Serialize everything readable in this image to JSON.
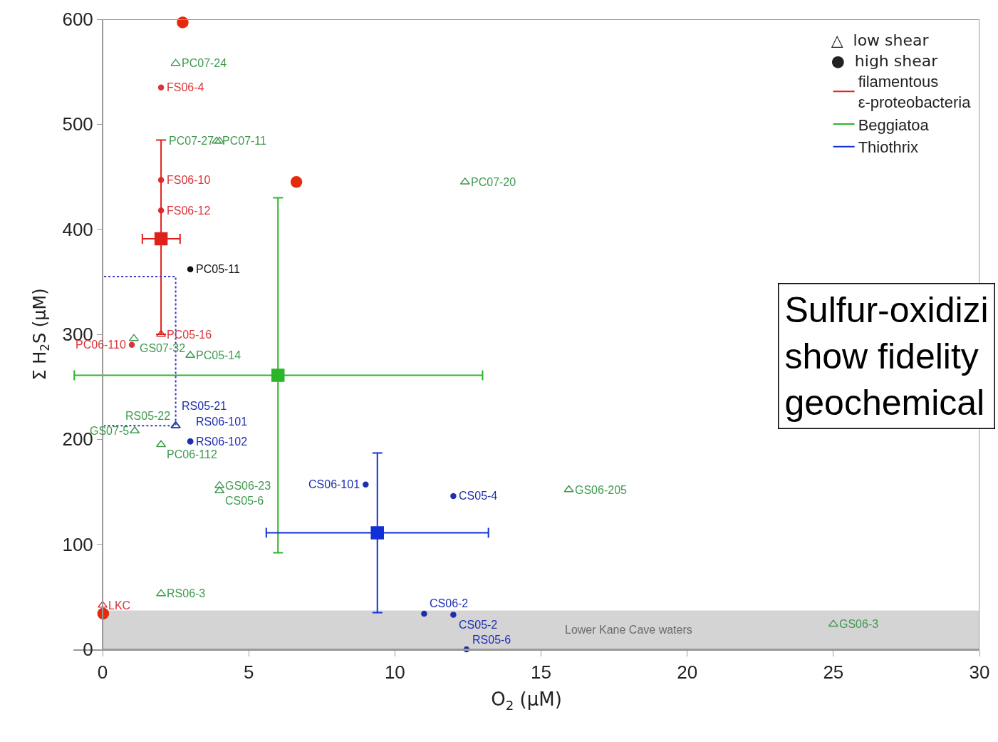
{
  "chart_data": {
    "type": "scatter",
    "xlabel": "O$_{2}$ (µM)",
    "ylabel": "Σ H$_{2}$S (µM)",
    "xlim": [
      -1,
      30
    ],
    "xticks": [
      0,
      5,
      10,
      15,
      20,
      25,
      30
    ],
    "ylim": [
      0,
      600
    ],
    "yticks": [
      0,
      100,
      200,
      300,
      400,
      500,
      600
    ],
    "grid": false,
    "legend": "top right",
    "legend_title": "△  low shear\n●  high shear",
    "bands": [
      {
        "axis": "y",
        "from": 0,
        "to": 37,
        "label": "Lower Kane Cave waters",
        "color": "#d4d4d4"
      }
    ],
    "series": [
      {
        "color": "#e52b0c",
        "marker": "circle",
        "x": [
          2.74,
          6.63,
          0.02
        ],
        "values": [
          597,
          445,
          34
        ]
      },
      {
        "marker": "circle",
        "x": [
          2.0,
          2.0,
          2.0,
          3.0,
          1.0,
          3.0,
          3.0,
          9.0,
          12.0,
          11.0,
          12.0,
          12.45
        ],
        "values": [
          535,
          447,
          418,
          362,
          290,
          198,
          198,
          157,
          146,
          34,
          33,
          0
        ],
        "value_labels": [
          "FS06-4",
          "FS06-10",
          "FS06-12",
          "PC05-11",
          "PC06-110",
          "RS06-102",
          "RS06-101",
          "CS06-101",
          "CS05-4",
          "CS06-2",
          "CS05-2",
          "RS05-6"
        ],
        "colors": [
          "#d9363a",
          "#d9363a",
          "#d9363a",
          "#111111",
          "#d9363a",
          "#1c2fb0",
          "#1c2fb0",
          "#1c2fb0",
          "#1c2fb0",
          "#1c2fb0",
          "#1c2fb0",
          "#1c2fb0"
        ]
      },
      {
        "marker": "triangle",
        "x": [
          2.5,
          3.9,
          4.0,
          12.4,
          1.07,
          2.0,
          3.0,
          1.1,
          2.0,
          2.5,
          2.5,
          4.0,
          4.0,
          15.95,
          2.0,
          25.0,
          0.0
        ],
        "values": [
          558,
          484,
          484,
          445,
          296,
          300,
          280,
          208,
          195,
          213,
          213,
          156,
          151,
          152,
          53,
          24,
          42
        ],
        "value_labels": [
          "PC07-24",
          "PC07-11",
          "PC07-27",
          "PC07-20",
          "GS07-32",
          "PC05-16",
          "PC05-14",
          "GS07-5",
          "PC06-112",
          "RS05-22",
          "RS05-21",
          "GS06-23",
          "CS05-6",
          "GS06-205",
          "RS06-3",
          "GS06-3",
          "LKC"
        ],
        "colors": [
          "#3f9a4f",
          "#3f9a4f",
          "#3f9a4f",
          "#3f9a4f",
          "#3f9a4f",
          "#d9363a",
          "#3f9a4f",
          "#3f9a4f",
          "#3f9a4f",
          "#3f9a4f",
          "#1c2fb0",
          "#3f9a4f",
          "#3f9a4f",
          "#3f9a4f",
          "#3f9a4f",
          "#3f9a4f",
          "#d9363a"
        ]
      },
      {
        "name": "filamentous\nε-proteobacteria",
        "color": "#e0211b",
        "marker": "square",
        "x": [
          2.0
        ],
        "values": [
          391
        ],
        "errors": [
          [
            300,
            485
          ]
        ],
        "xerrors": [
          [
            1.36,
            2.65
          ]
        ]
      },
      {
        "name": "Beggiatoa",
        "color": "#2bb52b",
        "marker": "square",
        "x": [
          6.0
        ],
        "values": [
          261
        ],
        "errors": [
          [
            92,
            430
          ]
        ],
        "xerrors": [
          [
            -0.97,
            13.0
          ]
        ]
      },
      {
        "name": "Thiothrix",
        "color": "#1131d6",
        "marker": "square",
        "x": [
          9.4
        ],
        "values": [
          111
        ],
        "errors": [
          [
            35,
            187
          ]
        ],
        "xerrors": [
          [
            5.6,
            13.2
          ]
        ]
      },
      {
        "type": "line",
        "color": "#3a3ac0",
        "line_style": "dotted",
        "marker": "none",
        "x": [
          0.05,
          2.5,
          2.5,
          0.05
        ],
        "values": [
          355,
          355,
          213,
          213
        ]
      }
    ],
    "annotations": [
      "Sulfur-oxidizi\nshow fidelity\ngeochemical"
    ]
  }
}
